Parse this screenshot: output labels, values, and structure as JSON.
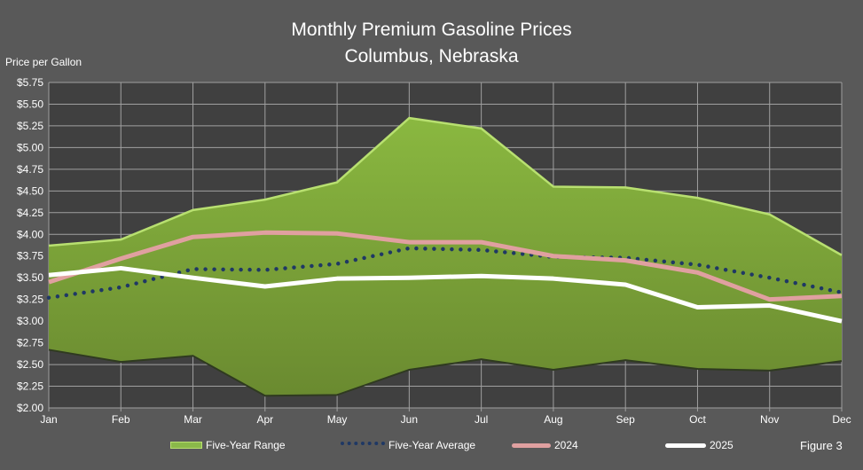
{
  "chart_data": {
    "type": "area",
    "title": "Monthly Premium Gasoline Prices",
    "subtitle": "Columbus, Nebraska",
    "ylabel": "Price per Gallon",
    "xlabel": "",
    "categories": [
      "Jan",
      "Feb",
      "Mar",
      "Apr",
      "May",
      "Jun",
      "Jul",
      "Aug",
      "Sep",
      "Oct",
      "Nov",
      "Dec"
    ],
    "ylim": [
      2.0,
      5.75
    ],
    "yticks": [
      "$2.00",
      "$2.25",
      "$2.50",
      "$2.75",
      "$3.00",
      "$3.25",
      "$3.50",
      "$3.75",
      "$4.00",
      "$4.25",
      "$4.50",
      "$4.75",
      "$5.00",
      "$5.25",
      "$5.50",
      "$5.75"
    ],
    "grid": true,
    "legend_placement": "bottom",
    "range": {
      "name": "Five-Year Range",
      "high": [
        3.87,
        3.94,
        4.28,
        4.4,
        4.6,
        5.34,
        5.22,
        4.55,
        4.54,
        4.42,
        4.23,
        3.76
      ],
      "low": [
        2.67,
        2.53,
        2.6,
        2.14,
        2.15,
        2.44,
        2.56,
        2.44,
        2.55,
        2.45,
        2.43,
        2.54
      ],
      "color": "#84ac3c"
    },
    "series": [
      {
        "name": "Five-Year Average",
        "values": [
          3.27,
          3.39,
          3.6,
          3.59,
          3.66,
          3.84,
          3.82,
          3.74,
          3.73,
          3.65,
          3.5,
          3.33
        ],
        "color": "#1f3864",
        "style": "dotted"
      },
      {
        "name": "2024",
        "values": [
          3.45,
          3.72,
          3.97,
          4.02,
          4.01,
          3.91,
          3.91,
          3.75,
          3.7,
          3.56,
          3.25,
          3.29
        ],
        "color": "#e0a0a0",
        "style": "solid"
      },
      {
        "name": "2025",
        "values": [
          3.53,
          3.61,
          3.5,
          3.4,
          3.49,
          3.5,
          3.52,
          3.49,
          3.42,
          3.16,
          3.18,
          3.0
        ],
        "color": "#ffffff",
        "style": "solid"
      }
    ],
    "annotation": "Figure 3"
  },
  "colors": {
    "background": "#595959",
    "plot_background": "#404040",
    "grid": "#a0a0a0"
  }
}
